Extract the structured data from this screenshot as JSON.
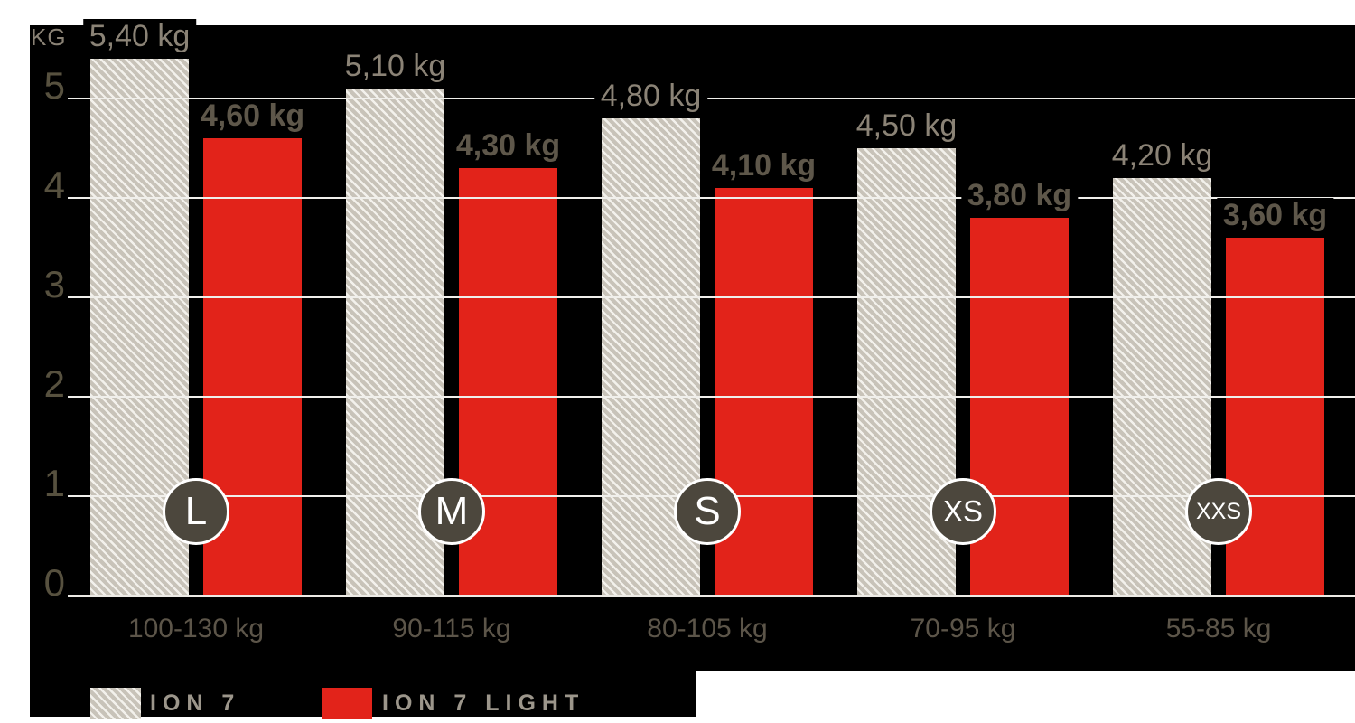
{
  "chart_data": {
    "type": "bar",
    "ylabel": "KG",
    "y_ticks": [
      5,
      4,
      3,
      2,
      1,
      0
    ],
    "ylim": [
      0,
      5.5
    ],
    "grid": true,
    "legend_position": "bottom-left",
    "categories": [
      "100-130 kg",
      "90-115 kg",
      "80-105 kg",
      "70-95 kg",
      "55-85 kg"
    ],
    "size_badges": [
      "L",
      "M",
      "S",
      "XS",
      "XXS"
    ],
    "series": [
      {
        "name": "ION 7",
        "swatch": "hatched-gray",
        "values": [
          5.4,
          5.1,
          4.8,
          4.5,
          4.2
        ],
        "value_labels": [
          "5,40 kg",
          "5,10 kg",
          "4,80 kg",
          "4,50 kg",
          "4,20 kg"
        ],
        "label_style": "regular"
      },
      {
        "name": "ION 7 LIGHT",
        "swatch": "solid-red",
        "values": [
          4.6,
          4.3,
          4.1,
          3.8,
          3.6
        ],
        "value_labels": [
          "4,60 kg",
          "4,30 kg",
          "4,10 kg",
          "3,80 kg",
          "3,60 kg"
        ],
        "label_style": "bold"
      }
    ]
  },
  "colors": {
    "red": "#e2231a",
    "bar_gray": "#c8c3b9",
    "hatch_stripe": "#f3f1ec",
    "gridline": "#f0efeb",
    "axis_line": "#eceae5",
    "badge_fill": "#4c473d",
    "badge_text": "#ffffff",
    "label_regular": "#8b8376",
    "label_bold": "#5e574a",
    "tick_text": "#57513f",
    "kg_text": "#8a8275",
    "category_text": "#5c5549",
    "legend_text": "#9c968b",
    "background_black": "#000000",
    "background_white": "#ffffff"
  }
}
